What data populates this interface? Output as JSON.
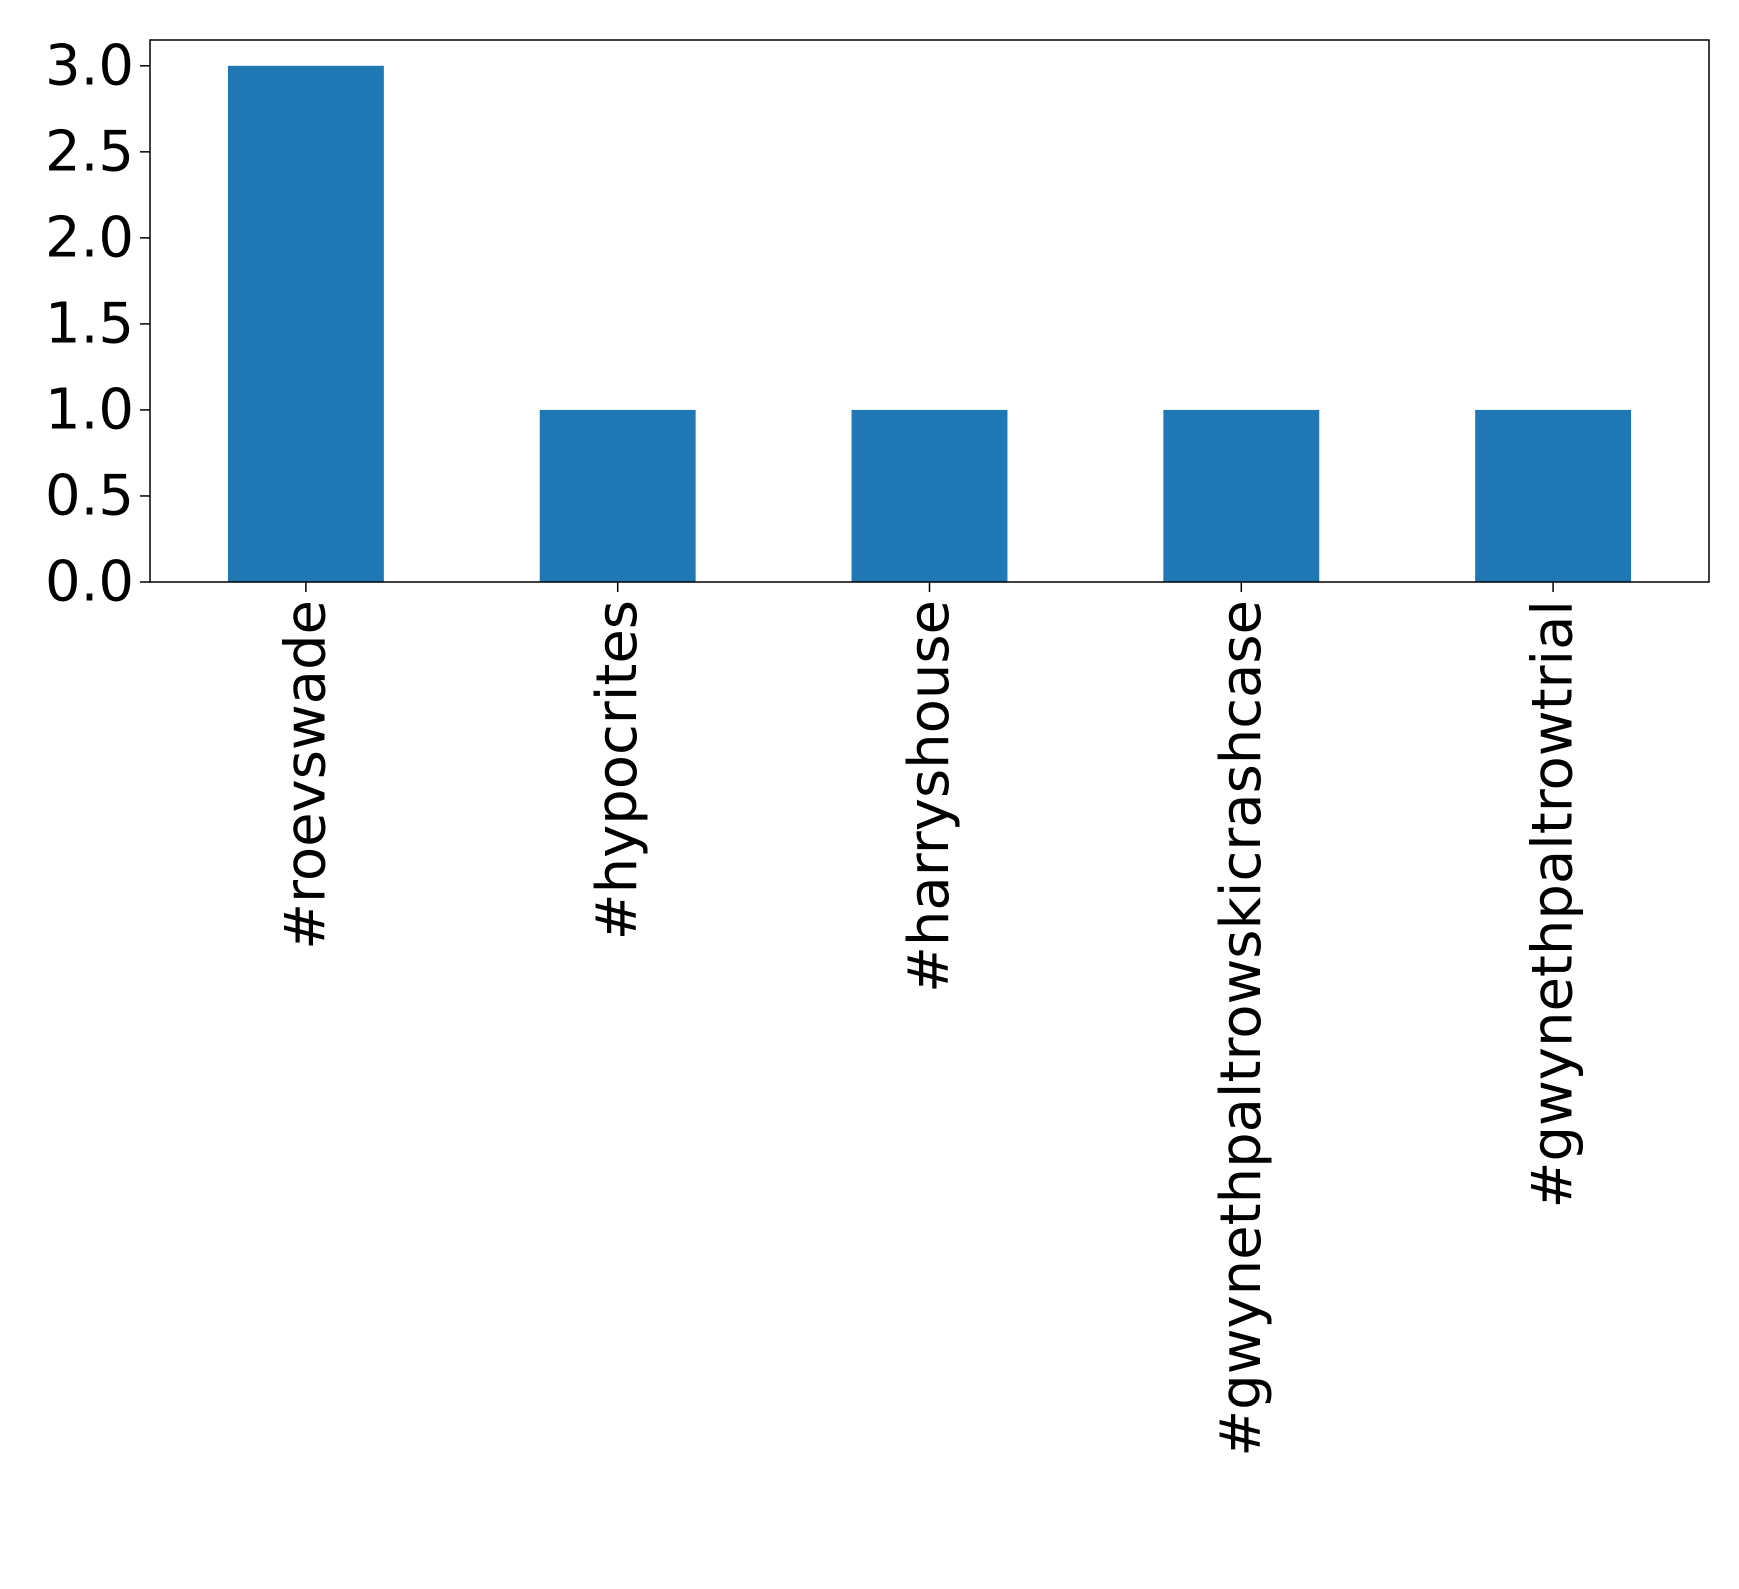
{
  "chart_data": {
    "type": "bar",
    "title": "",
    "xlabel": "",
    "ylabel": "",
    "categories": [
      "#roevswade",
      "#hypocrites",
      "#harryshouse",
      "#gwynethpaltrowskicrashcase",
      "#gwynethpaltrowtrial"
    ],
    "values": [
      3,
      1,
      1,
      1,
      1
    ],
    "ylim": [
      0,
      3.15
    ],
    "yticks": [
      "0.0",
      "0.5",
      "1.0",
      "1.5",
      "2.0",
      "2.5",
      "3.0"
    ],
    "grid": false,
    "legend": "none",
    "bar_color": "#1f77b4"
  }
}
